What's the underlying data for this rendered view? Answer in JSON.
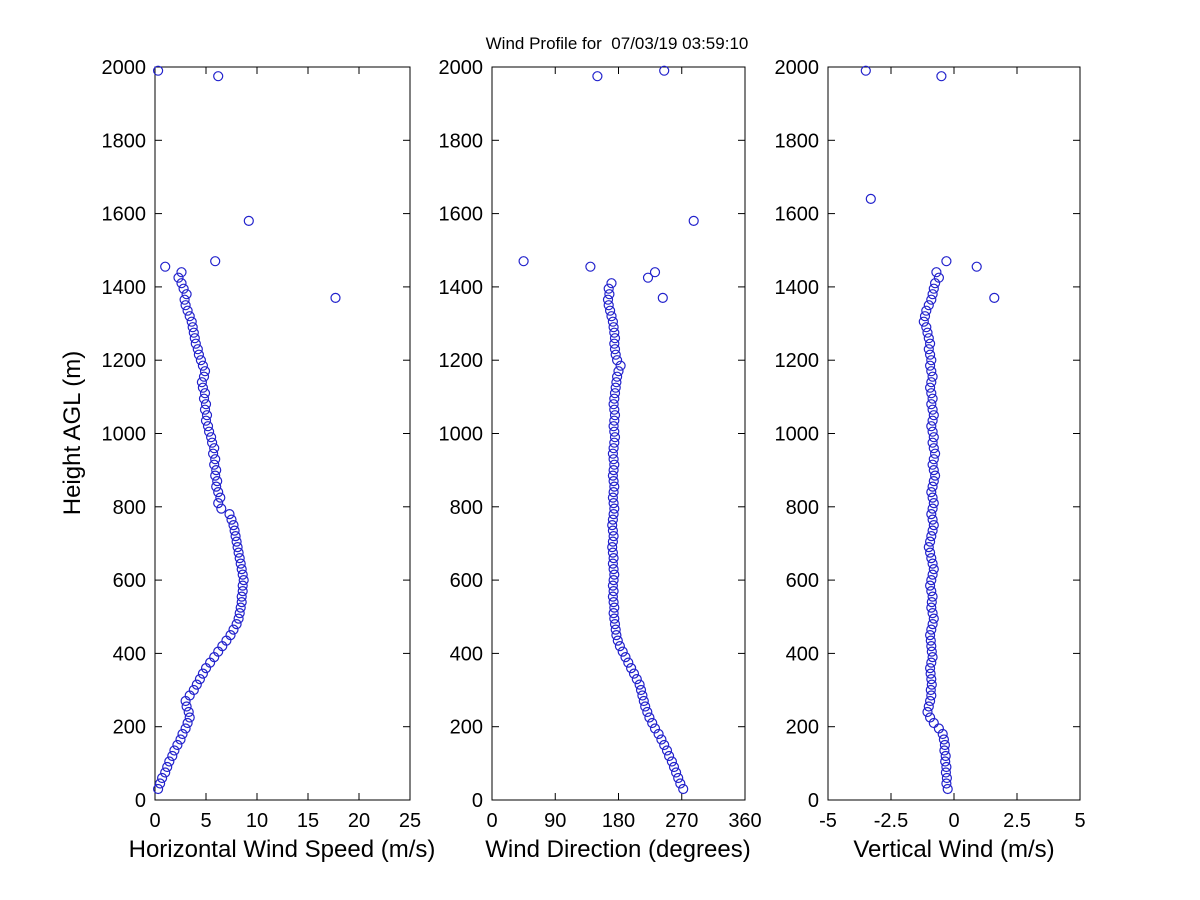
{
  "title": "Wind Profile for  07/03/19 03:59:10",
  "marker": {
    "color": "#2222cc"
  },
  "chart_data": [
    {
      "type": "scatter",
      "xlabel": "Horizontal Wind Speed (m/s)",
      "ylabel": "Height AGL (m)",
      "xlim": [
        0,
        25
      ],
      "ylim": [
        0,
        2000
      ],
      "xticks": [
        0,
        5,
        10,
        15,
        20,
        25
      ],
      "yticks": [
        0,
        200,
        400,
        600,
        800,
        1000,
        1200,
        1400,
        1600,
        1800,
        2000
      ],
      "x": [
        0.3,
        0.5,
        0.7,
        1.0,
        1.2,
        1.4,
        1.7,
        1.9,
        2.2,
        2.5,
        2.7,
        3.0,
        3.2,
        3.4,
        3.3,
        3.1,
        3.0,
        3.4,
        3.8,
        4.1,
        4.4,
        4.7,
        5.0,
        5.4,
        5.8,
        6.2,
        6.6,
        7.0,
        7.4,
        7.7,
        8.0,
        8.2,
        8.3,
        8.4,
        8.5,
        8.5,
        8.6,
        8.6,
        8.7,
        8.6,
        8.5,
        8.4,
        8.3,
        8.2,
        8.1,
        8.0,
        7.9,
        7.8,
        7.7,
        7.5,
        7.3,
        6.5,
        6.2,
        6.4,
        6.2,
        6.0,
        6.1,
        5.9,
        6.0,
        5.8,
        5.9,
        5.7,
        5.8,
        5.6,
        5.5,
        5.3,
        5.2,
        5.0,
        5.1,
        4.9,
        5.0,
        4.8,
        4.9,
        4.7,
        4.6,
        4.8,
        4.9,
        4.7,
        4.5,
        4.3,
        4.2,
        4.0,
        3.9,
        3.8,
        3.7,
        3.6,
        3.4,
        3.2,
        3.0,
        2.9,
        3.1,
        2.8,
        2.6,
        2.3,
        2.6,
        1.0,
        5.9,
        17.7,
        9.2,
        6.2,
        0.3
      ],
      "y": [
        30,
        45,
        60,
        75,
        90,
        105,
        120,
        135,
        150,
        165,
        180,
        195,
        210,
        225,
        240,
        255,
        270,
        285,
        300,
        315,
        330,
        345,
        360,
        375,
        390,
        405,
        420,
        435,
        450,
        465,
        480,
        495,
        510,
        525,
        540,
        555,
        570,
        585,
        600,
        615,
        630,
        645,
        660,
        675,
        690,
        705,
        720,
        735,
        750,
        765,
        780,
        795,
        810,
        825,
        840,
        855,
        870,
        885,
        900,
        915,
        930,
        945,
        960,
        975,
        990,
        1005,
        1020,
        1035,
        1050,
        1065,
        1080,
        1095,
        1110,
        1125,
        1140,
        1155,
        1170,
        1185,
        1200,
        1215,
        1230,
        1245,
        1260,
        1275,
        1290,
        1305,
        1320,
        1335,
        1350,
        1365,
        1380,
        1395,
        1410,
        1425,
        1440,
        1455,
        1470,
        1370,
        1580,
        1975,
        1990
      ]
    },
    {
      "type": "scatter",
      "xlabel": "Wind Direction (degrees)",
      "ylabel": "",
      "xlim": [
        0,
        360
      ],
      "ylim": [
        0,
        2000
      ],
      "xticks": [
        0,
        90,
        180,
        270,
        360
      ],
      "yticks": [
        0,
        200,
        400,
        600,
        800,
        1000,
        1200,
        1400,
        1600,
        1800,
        2000
      ],
      "x": [
        272,
        268,
        265,
        262,
        259,
        256,
        252,
        249,
        245,
        241,
        237,
        232,
        228,
        224,
        221,
        218,
        216,
        214,
        212,
        210,
        206,
        202,
        198,
        194,
        190,
        186,
        182,
        179,
        177,
        176,
        175,
        174,
        173,
        174,
        173,
        172,
        173,
        172,
        173,
        174,
        173,
        172,
        173,
        172,
        171,
        172,
        173,
        172,
        171,
        172,
        173,
        174,
        173,
        172,
        173,
        174,
        173,
        172,
        173,
        174,
        173,
        172,
        173,
        174,
        175,
        174,
        173,
        174,
        175,
        174,
        173,
        174,
        175,
        176,
        177,
        178,
        180,
        183,
        178,
        176,
        175,
        174,
        175,
        174,
        173,
        172,
        170,
        168,
        166,
        165,
        167,
        166,
        170,
        222,
        232,
        140,
        45,
        243,
        287,
        150,
        245
      ],
      "y": [
        30,
        45,
        60,
        75,
        90,
        105,
        120,
        135,
        150,
        165,
        180,
        195,
        210,
        225,
        240,
        255,
        270,
        285,
        300,
        315,
        330,
        345,
        360,
        375,
        390,
        405,
        420,
        435,
        450,
        465,
        480,
        495,
        510,
        525,
        540,
        555,
        570,
        585,
        600,
        615,
        630,
        645,
        660,
        675,
        690,
        705,
        720,
        735,
        750,
        765,
        780,
        795,
        810,
        825,
        840,
        855,
        870,
        885,
        900,
        915,
        930,
        945,
        960,
        975,
        990,
        1005,
        1020,
        1035,
        1050,
        1065,
        1080,
        1095,
        1110,
        1125,
        1140,
        1155,
        1170,
        1185,
        1200,
        1215,
        1230,
        1245,
        1260,
        1275,
        1290,
        1305,
        1320,
        1335,
        1350,
        1365,
        1380,
        1395,
        1410,
        1425,
        1440,
        1455,
        1470,
        1370,
        1580,
        1975,
        1990
      ]
    },
    {
      "type": "scatter",
      "xlabel": "Vertical Wind (m/s)",
      "ylabel": "",
      "xlim": [
        -5,
        5
      ],
      "ylim": [
        0,
        2000
      ],
      "xticks": [
        -5,
        -2.5,
        0,
        2.5,
        5
      ],
      "yticks": [
        0,
        200,
        400,
        600,
        800,
        1000,
        1200,
        1400,
        1600,
        1800,
        2000
      ],
      "x": [
        -0.25,
        -0.3,
        -0.28,
        -0.32,
        -0.3,
        -0.35,
        -0.33,
        -0.38,
        -0.36,
        -0.4,
        -0.45,
        -0.6,
        -0.8,
        -0.95,
        -1.05,
        -1.0,
        -0.95,
        -0.9,
        -0.92,
        -0.88,
        -0.9,
        -0.93,
        -0.95,
        -0.9,
        -0.85,
        -0.88,
        -0.9,
        -0.92,
        -0.95,
        -0.9,
        -0.85,
        -0.8,
        -0.85,
        -0.9,
        -0.88,
        -0.85,
        -0.9,
        -0.95,
        -0.9,
        -0.85,
        -0.8,
        -0.85,
        -0.9,
        -0.95,
        -1.0,
        -0.95,
        -0.9,
        -0.85,
        -0.8,
        -0.85,
        -0.9,
        -0.85,
        -0.8,
        -0.85,
        -0.9,
        -0.85,
        -0.8,
        -0.75,
        -0.8,
        -0.85,
        -0.8,
        -0.75,
        -0.8,
        -0.85,
        -0.8,
        -0.85,
        -0.9,
        -0.85,
        -0.8,
        -0.85,
        -0.9,
        -0.85,
        -0.9,
        -0.95,
        -0.9,
        -0.85,
        -0.9,
        -0.95,
        -0.9,
        -0.95,
        -1.0,
        -0.95,
        -1.0,
        -1.05,
        -1.1,
        -1.2,
        -1.15,
        -1.1,
        -1.0,
        -0.9,
        -0.85,
        -0.8,
        -0.75,
        -0.6,
        -0.7,
        0.9,
        -0.3,
        1.6,
        -3.3,
        -0.5,
        -3.5
      ],
      "y": [
        30,
        45,
        60,
        75,
        90,
        105,
        120,
        135,
        150,
        165,
        180,
        195,
        210,
        225,
        240,
        255,
        270,
        285,
        300,
        315,
        330,
        345,
        360,
        375,
        390,
        405,
        420,
        435,
        450,
        465,
        480,
        495,
        510,
        525,
        540,
        555,
        570,
        585,
        600,
        615,
        630,
        645,
        660,
        675,
        690,
        705,
        720,
        735,
        750,
        765,
        780,
        795,
        810,
        825,
        840,
        855,
        870,
        885,
        900,
        915,
        930,
        945,
        960,
        975,
        990,
        1005,
        1020,
        1035,
        1050,
        1065,
        1080,
        1095,
        1110,
        1125,
        1140,
        1155,
        1170,
        1185,
        1200,
        1215,
        1230,
        1245,
        1260,
        1275,
        1290,
        1305,
        1320,
        1335,
        1350,
        1365,
        1380,
        1395,
        1410,
        1425,
        1440,
        1455,
        1470,
        1370,
        1640,
        1975,
        1990
      ]
    }
  ]
}
